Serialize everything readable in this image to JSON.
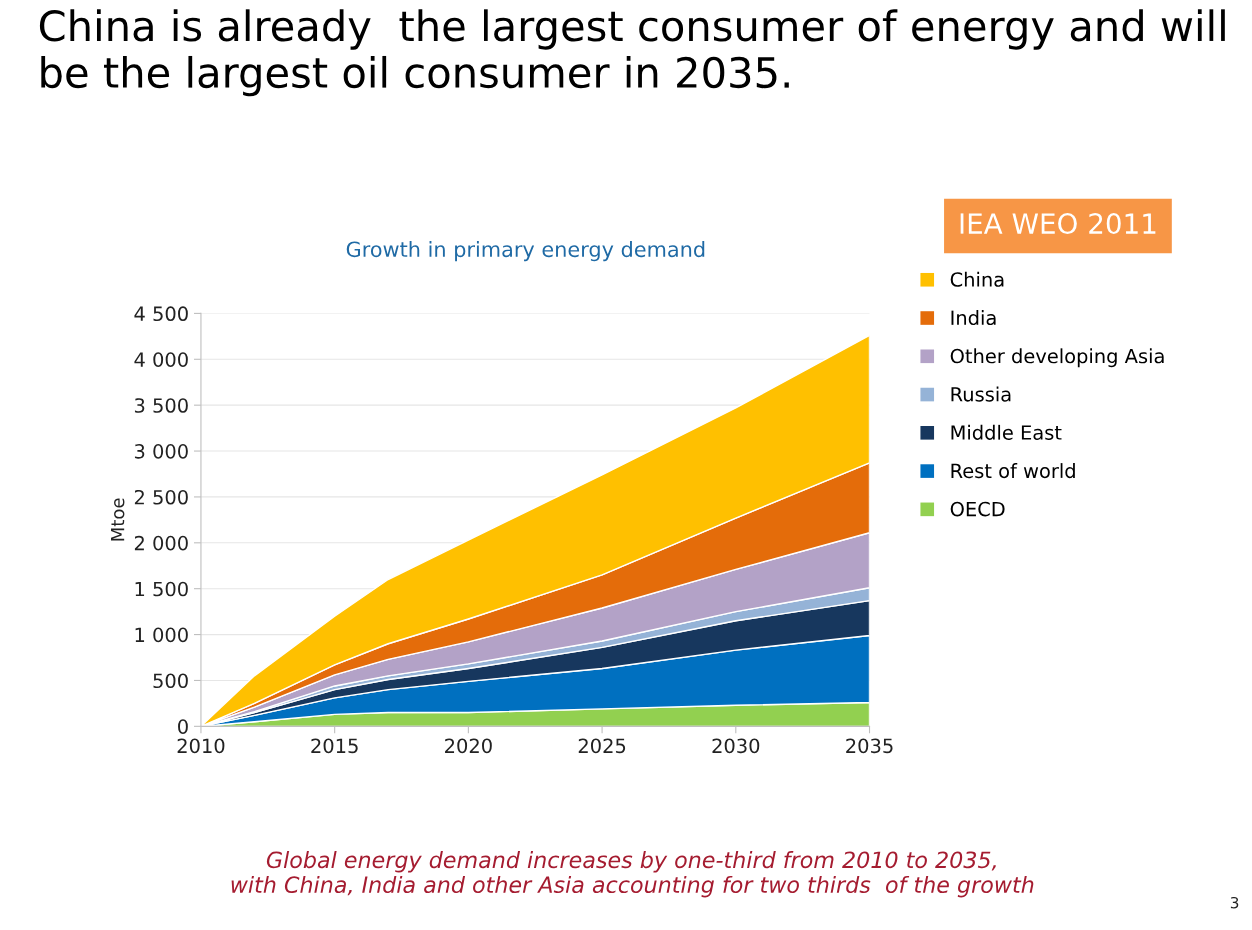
{
  "chart_data": {
    "type": "area",
    "stacked": true,
    "title": "China is already  the largest consumer of energy and will be the largest oil consumer in 2035.",
    "subtitle": "Growth in primary energy demand",
    "ylabel": "Mtoe",
    "x": [
      2010,
      2012,
      2015,
      2017,
      2020,
      2025,
      2030,
      2035
    ],
    "series": [
      {
        "name": "OECD",
        "color": "#92d050",
        "values": [
          0,
          50,
          130,
          150,
          150,
          190,
          230,
          260
        ]
      },
      {
        "name": "Rest of world",
        "color": "#0070c0",
        "values": [
          0,
          70,
          180,
          250,
          340,
          440,
          600,
          730
        ]
      },
      {
        "name": "Middle East",
        "color": "#17375e",
        "values": [
          0,
          30,
          90,
          110,
          140,
          230,
          320,
          380
        ]
      },
      {
        "name": "Russia",
        "color": "#95b3d7",
        "values": [
          0,
          10,
          40,
          40,
          50,
          70,
          100,
          140
        ]
      },
      {
        "name": "Other developing Asia",
        "color": "#b3a2c7",
        "values": [
          0,
          50,
          120,
          180,
          240,
          360,
          460,
          600
        ]
      },
      {
        "name": "India",
        "color": "#e46c0a",
        "values": [
          0,
          40,
          110,
          170,
          250,
          360,
          560,
          760
        ]
      },
      {
        "name": "China",
        "color": "#ffc000",
        "values": [
          0,
          300,
          530,
          700,
          860,
          1090,
          1200,
          1390
        ]
      }
    ],
    "xlim": [
      2010,
      2035
    ],
    "xticks": [
      2010,
      2015,
      2020,
      2025,
      2030,
      2035
    ],
    "ylim": [
      0,
      4500
    ],
    "yticks": [
      0,
      500,
      {
        "value": 1000,
        "label": "1 000"
      },
      {
        "value": 1500,
        "label": "1 500"
      },
      {
        "value": 2000,
        "label": "2 000"
      },
      {
        "value": 2500,
        "label": "2 500"
      },
      {
        "value": 3000,
        "label": "3 000"
      },
      {
        "value": 3500,
        "label": "3 500"
      },
      {
        "value": 4000,
        "label": "4 000"
      },
      {
        "value": 4500,
        "label": "4 500"
      }
    ],
    "grid": "y",
    "legend": "right",
    "annotations": [
      "IEA WEO 2011",
      "Global energy demand increases by one-third from 2010 to 2035,\nwith China, India and other Asia accounting for two thirds  of the growth",
      "3"
    ]
  }
}
